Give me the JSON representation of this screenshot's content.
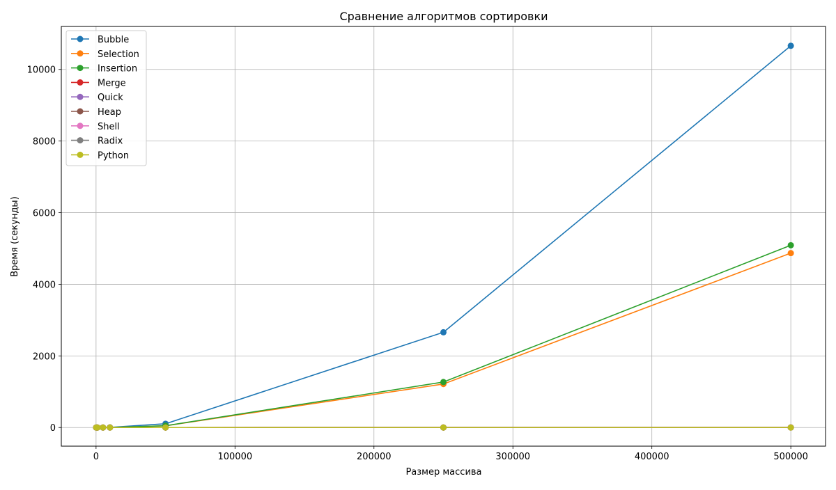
{
  "chart_data": {
    "type": "line",
    "title": "Сравнение алгоритмов сортировки",
    "xlabel": "Размер массива",
    "ylabel": "Время (секунды)",
    "xlim": [
      -25000,
      525000
    ],
    "ylim": [
      -520,
      11200
    ],
    "xticks": [
      0,
      100000,
      200000,
      300000,
      400000,
      500000
    ],
    "yticks": [
      0,
      2000,
      4000,
      6000,
      8000,
      10000
    ],
    "grid": true,
    "legend_position": "upper-left",
    "x": [
      100,
      1000,
      5000,
      10000,
      50000,
      250000,
      500000
    ],
    "series": [
      {
        "name": "Bubble",
        "color": "#1f77b4",
        "values": [
          0,
          0,
          1,
          4,
          105,
          2660,
          10660
        ]
      },
      {
        "name": "Selection",
        "color": "#ff7f0e",
        "values": [
          0,
          0,
          1,
          2,
          48,
          1215,
          4870
        ]
      },
      {
        "name": "Insertion",
        "color": "#2ca02c",
        "values": [
          0,
          0,
          1,
          2,
          50,
          1270,
          5090
        ]
      },
      {
        "name": "Merge",
        "color": "#d62728",
        "values": [
          0,
          0,
          0,
          0,
          0,
          1,
          2
        ]
      },
      {
        "name": "Quick",
        "color": "#9467bd",
        "values": [
          0,
          0,
          0,
          0,
          0,
          1,
          1
        ]
      },
      {
        "name": "Heap",
        "color": "#8c564b",
        "values": [
          0,
          0,
          0,
          0,
          0,
          1,
          2
        ]
      },
      {
        "name": "Shell",
        "color": "#e377c2",
        "values": [
          0,
          0,
          0,
          0,
          0,
          1,
          2
        ]
      },
      {
        "name": "Radix",
        "color": "#7f7f7f",
        "values": [
          0,
          0,
          0,
          0,
          0,
          1,
          1
        ]
      },
      {
        "name": "Python",
        "color": "#bcbd22",
        "values": [
          0,
          0,
          0,
          0,
          0,
          0,
          0
        ]
      }
    ]
  }
}
